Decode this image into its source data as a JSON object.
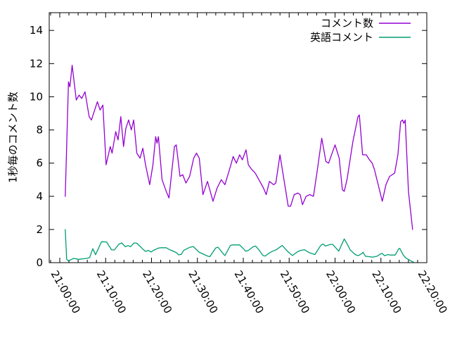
{
  "chart_data": {
    "type": "line",
    "title": "",
    "xlabel": "",
    "ylabel": "1秒毎のコメント数",
    "background": "#FFFFFF",
    "text_color": "#000000",
    "grid": false,
    "legend": {
      "position": "top-right-inside",
      "entries": [
        "コメント数",
        "英語コメント"
      ]
    },
    "x_axis": {
      "unit": "time-of-day",
      "tick_labels": [
        "21:00:00",
        "21:10:00",
        "21:20:00",
        "21:30:00",
        "21:40:00",
        "21:50:00",
        "22:00:00",
        "22:10:00",
        "22:20:00"
      ],
      "tick_minutes": [
        0,
        10,
        20,
        30,
        40,
        50,
        60,
        70,
        80
      ],
      "minor_tick_step_minutes": 2,
      "range_minutes": [
        -2.3,
        80
      ]
    },
    "y_axis": {
      "tick_values": [
        0,
        2,
        4,
        6,
        8,
        10,
        12,
        14
      ],
      "range": [
        0,
        15.07
      ]
    },
    "series": [
      {
        "name": "コメント数",
        "color": "#9400D3",
        "points_minutes_value": [
          [
            1.2,
            4.0
          ],
          [
            1.9,
            10.9
          ],
          [
            2.2,
            10.6
          ],
          [
            2.7,
            11.9
          ],
          [
            3.6,
            9.8
          ],
          [
            4.2,
            10.1
          ],
          [
            4.8,
            9.9
          ],
          [
            5.5,
            10.3
          ],
          [
            6.4,
            8.8
          ],
          [
            6.9,
            8.6
          ],
          [
            8.2,
            9.7
          ],
          [
            8.8,
            9.2
          ],
          [
            9.4,
            9.5
          ],
          [
            10.1,
            5.9
          ],
          [
            11.0,
            7.0
          ],
          [
            11.4,
            6.6
          ],
          [
            12.2,
            7.9
          ],
          [
            12.7,
            7.4
          ],
          [
            13.3,
            8.8
          ],
          [
            13.9,
            7.0
          ],
          [
            14.4,
            8.1
          ],
          [
            15.0,
            8.6
          ],
          [
            15.6,
            8.0
          ],
          [
            16.1,
            8.6
          ],
          [
            16.8,
            6.6
          ],
          [
            17.5,
            6.3
          ],
          [
            18.1,
            6.9
          ],
          [
            18.7,
            5.9
          ],
          [
            19.6,
            4.7
          ],
          [
            20.3,
            5.9
          ],
          [
            20.9,
            7.6
          ],
          [
            21.2,
            7.2
          ],
          [
            21.5,
            7.6
          ],
          [
            22.3,
            5.0
          ],
          [
            23.2,
            4.3
          ],
          [
            23.8,
            3.9
          ],
          [
            25.0,
            7.0
          ],
          [
            25.4,
            7.1
          ],
          [
            26.2,
            5.2
          ],
          [
            26.8,
            5.3
          ],
          [
            27.5,
            4.8
          ],
          [
            28.3,
            5.2
          ],
          [
            29.2,
            6.3
          ],
          [
            29.8,
            6.6
          ],
          [
            30.4,
            6.3
          ],
          [
            31.2,
            4.1
          ],
          [
            32.2,
            4.9
          ],
          [
            33.4,
            3.7
          ],
          [
            34.3,
            4.5
          ],
          [
            35.2,
            5.0
          ],
          [
            36.0,
            4.7
          ],
          [
            37.3,
            5.9
          ],
          [
            37.8,
            6.4
          ],
          [
            38.5,
            6.0
          ],
          [
            39.2,
            6.5
          ],
          [
            39.8,
            6.2
          ],
          [
            40.6,
            6.8
          ],
          [
            41.1,
            5.9
          ],
          [
            41.9,
            5.6
          ],
          [
            42.6,
            5.4
          ],
          [
            43.4,
            5.0
          ],
          [
            44.4,
            4.5
          ],
          [
            45.0,
            4.1
          ],
          [
            45.7,
            4.9
          ],
          [
            46.6,
            4.7
          ],
          [
            47.1,
            4.8
          ],
          [
            48.0,
            6.5
          ],
          [
            49.8,
            3.4
          ],
          [
            50.3,
            3.4
          ],
          [
            51.1,
            4.1
          ],
          [
            51.9,
            4.2
          ],
          [
            52.4,
            4.1
          ],
          [
            52.9,
            3.5
          ],
          [
            53.7,
            4.0
          ],
          [
            54.5,
            4.1
          ],
          [
            55.3,
            4.0
          ],
          [
            56.2,
            5.7
          ],
          [
            57.1,
            7.5
          ],
          [
            58.0,
            6.1
          ],
          [
            58.6,
            6.0
          ],
          [
            60.0,
            7.1
          ],
          [
            60.9,
            6.3
          ],
          [
            61.6,
            4.4
          ],
          [
            62.0,
            4.3
          ],
          [
            62.6,
            5.0
          ],
          [
            63.9,
            7.3
          ],
          [
            65.0,
            8.8
          ],
          [
            65.3,
            8.9
          ],
          [
            66.0,
            6.5
          ],
          [
            66.8,
            6.5
          ],
          [
            67.5,
            6.2
          ],
          [
            68.1,
            6.0
          ],
          [
            68.6,
            5.6
          ],
          [
            70.3,
            3.7
          ],
          [
            71.1,
            4.7
          ],
          [
            71.9,
            5.2
          ],
          [
            73.0,
            5.4
          ],
          [
            73.7,
            6.5
          ],
          [
            74.3,
            8.5
          ],
          [
            74.7,
            8.6
          ],
          [
            75.0,
            8.4
          ],
          [
            75.3,
            8.6
          ],
          [
            76.0,
            4.3
          ],
          [
            76.9,
            2.0
          ]
        ]
      },
      {
        "name": "英語コメント",
        "color": "#009E73",
        "points_minutes_value": [
          [
            1.2,
            2.0
          ],
          [
            1.5,
            0.2
          ],
          [
            1.9,
            0.1
          ],
          [
            3.0,
            0.26
          ],
          [
            4.1,
            0.2
          ],
          [
            5.0,
            0.23
          ],
          [
            5.9,
            0.26
          ],
          [
            6.5,
            0.3
          ],
          [
            7.2,
            0.84
          ],
          [
            7.8,
            0.48
          ],
          [
            9.1,
            1.26
          ],
          [
            10.2,
            1.25
          ],
          [
            11.3,
            0.77
          ],
          [
            11.9,
            0.77
          ],
          [
            12.9,
            1.12
          ],
          [
            13.5,
            1.19
          ],
          [
            14.3,
            0.96
          ],
          [
            14.9,
            1.03
          ],
          [
            15.4,
            0.96
          ],
          [
            16.2,
            1.19
          ],
          [
            16.8,
            1.17
          ],
          [
            17.6,
            0.96
          ],
          [
            18.1,
            0.82
          ],
          [
            18.7,
            0.68
          ],
          [
            19.3,
            0.74
          ],
          [
            19.9,
            0.64
          ],
          [
            20.4,
            0.74
          ],
          [
            21.5,
            0.88
          ],
          [
            22.1,
            0.9
          ],
          [
            23.2,
            0.9
          ],
          [
            23.7,
            0.82
          ],
          [
            24.8,
            0.68
          ],
          [
            25.4,
            0.61
          ],
          [
            25.9,
            0.47
          ],
          [
            26.5,
            0.5
          ],
          [
            27.0,
            0.74
          ],
          [
            28.4,
            0.93
          ],
          [
            29.1,
            0.97
          ],
          [
            30.4,
            0.62
          ],
          [
            30.9,
            0.57
          ],
          [
            32.2,
            0.4
          ],
          [
            32.7,
            0.36
          ],
          [
            34.0,
            0.89
          ],
          [
            34.5,
            0.93
          ],
          [
            35.8,
            0.48
          ],
          [
            36.0,
            0.43
          ],
          [
            37.2,
            1.04
          ],
          [
            37.7,
            1.07
          ],
          [
            39.2,
            1.07
          ],
          [
            40.0,
            0.85
          ],
          [
            40.5,
            0.69
          ],
          [
            41.1,
            0.74
          ],
          [
            42.2,
            0.97
          ],
          [
            42.7,
            1.0
          ],
          [
            43.5,
            0.74
          ],
          [
            44.3,
            0.43
          ],
          [
            44.8,
            0.4
          ],
          [
            45.6,
            0.57
          ],
          [
            46.4,
            0.69
          ],
          [
            47.2,
            0.78
          ],
          [
            47.7,
            0.88
          ],
          [
            48.5,
            1.04
          ],
          [
            49.3,
            0.78
          ],
          [
            49.9,
            0.62
          ],
          [
            50.7,
            0.43
          ],
          [
            52.0,
            0.69
          ],
          [
            52.5,
            0.74
          ],
          [
            53.3,
            0.78
          ],
          [
            54.4,
            0.6
          ],
          [
            55.6,
            0.49
          ],
          [
            56.9,
            1.05
          ],
          [
            57.4,
            1.12
          ],
          [
            57.9,
            1.0
          ],
          [
            58.4,
            1.05
          ],
          [
            59.0,
            1.1
          ],
          [
            59.5,
            1.1
          ],
          [
            60.8,
            0.69
          ],
          [
            62.0,
            1.43
          ],
          [
            62.8,
            1.05
          ],
          [
            63.3,
            0.77
          ],
          [
            64.1,
            0.56
          ],
          [
            64.6,
            0.46
          ],
          [
            65.1,
            0.43
          ],
          [
            65.9,
            0.56
          ],
          [
            66.1,
            0.63
          ],
          [
            66.6,
            0.39
          ],
          [
            67.4,
            0.36
          ],
          [
            68.2,
            0.33
          ],
          [
            69.2,
            0.39
          ],
          [
            69.7,
            0.49
          ],
          [
            70.2,
            0.56
          ],
          [
            70.8,
            0.42
          ],
          [
            71.5,
            0.49
          ],
          [
            72.0,
            0.46
          ],
          [
            73.1,
            0.46
          ],
          [
            73.9,
            0.84
          ],
          [
            74.1,
            0.86
          ],
          [
            74.9,
            0.45
          ],
          [
            75.4,
            0.29
          ],
          [
            76.2,
            0.16
          ],
          [
            76.7,
            0.08
          ],
          [
            77.2,
            0.02
          ]
        ]
      }
    ]
  }
}
